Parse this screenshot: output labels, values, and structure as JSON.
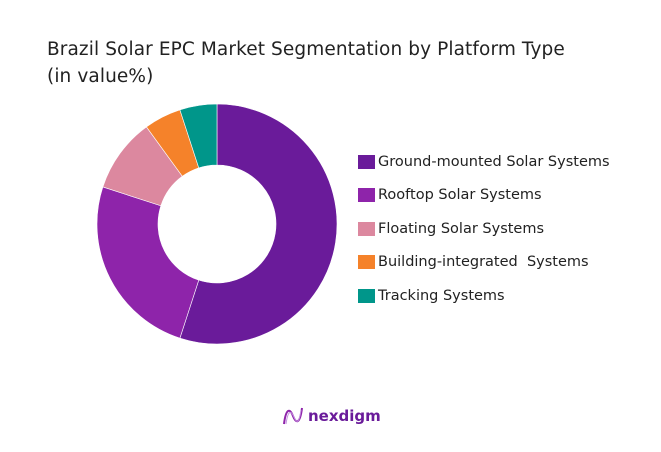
{
  "title": {
    "line1": "Brazil Solar EPC Market Segmentation by Platform Type",
    "line2": "(in value%)"
  },
  "chart_data": {
    "type": "pie",
    "subtype": "donut",
    "title": "Brazil Solar EPC Market Segmentation by Platform Type (in value%)",
    "categories": [
      "Ground-mounted Solar Systems",
      "Rooftop Solar Systems",
      "Floating Solar Systems",
      "Building-integrated  Systems",
      "Tracking Systems"
    ],
    "values": [
      55,
      25,
      10,
      5,
      5
    ],
    "colors": [
      "#6a1b9a",
      "#8e24aa",
      "#dc889f",
      "#f5822a",
      "#00968a"
    ],
    "legend_position": "right",
    "start_angle": "12 o'clock, clockwise"
  },
  "legend": {
    "items": [
      {
        "label": "Ground-mounted Solar Systems",
        "color": "#6a1b9a"
      },
      {
        "label": "Rooftop Solar Systems",
        "color": "#8e24aa"
      },
      {
        "label": "Floating Solar Systems",
        "color": "#dc889f"
      },
      {
        "label": "Building-integrated  Systems",
        "color": "#f5822a"
      },
      {
        "label": "Tracking Systems",
        "color": "#00968a"
      }
    ]
  },
  "logo": {
    "text": "nexdigm",
    "color": "#6a1b9a"
  }
}
